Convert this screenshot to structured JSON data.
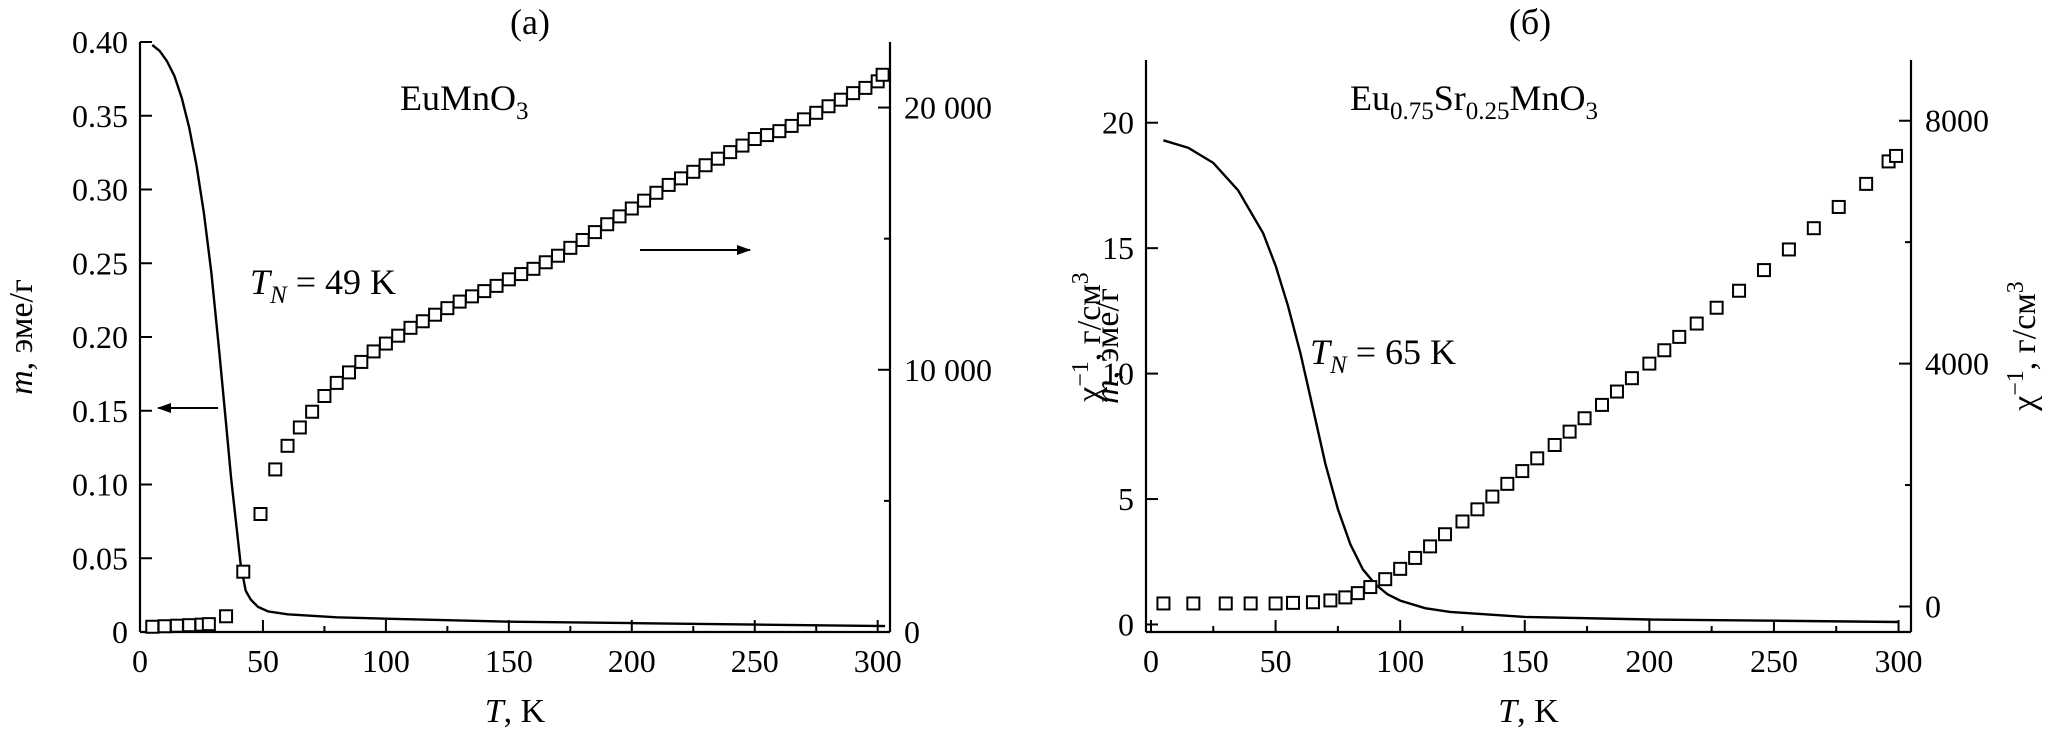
{
  "chart_data": [
    {
      "panel": "a",
      "panel_label": "(a)",
      "type": "line+scatter",
      "formula_parts": [
        {
          "text": "EuMnO",
          "sub": false
        },
        {
          "text": "3",
          "sub": true
        }
      ],
      "annotation": {
        "symbol": "T",
        "sub": "N",
        "rest": " = 49 K"
      },
      "xlabel": {
        "var": "T",
        "unit": ", K"
      },
      "ylabel_left": {
        "var": "m",
        "unit": ", эме/г"
      },
      "ylabel_right": {
        "prefix": "χ",
        "sup1": "−1",
        "mid": ", г/см",
        "sup2": "3"
      },
      "xlim": [
        0,
        305
      ],
      "ylim_left": [
        0,
        0.4
      ],
      "ylim_right": [
        0,
        22500
      ],
      "xticks": [
        0,
        50,
        100,
        150,
        200,
        250,
        300
      ],
      "xtick_labels": [
        "0",
        "50",
        "100",
        "150",
        "200",
        "250",
        "300"
      ],
      "yticks_left": [
        0,
        0.05,
        0.1,
        0.15,
        0.2,
        0.25,
        0.3,
        0.35,
        0.4
      ],
      "ytick_labels_left": [
        "0",
        "0.05",
        "0.10",
        "0.15",
        "0.20",
        "0.25",
        "0.30",
        "0.35",
        "0.40"
      ],
      "yticks_right": [
        0,
        10000,
        20000
      ],
      "ytick_labels_right": [
        "0",
        "10 000",
        "20 000"
      ],
      "series": [
        {
          "axis": "left",
          "style": "line",
          "x": [
            5,
            8,
            11,
            14,
            17,
            20,
            23,
            26,
            29,
            32,
            35,
            37,
            39,
            41,
            43,
            45,
            48,
            52,
            60,
            80,
            100,
            150,
            200,
            250,
            303
          ],
          "y": [
            0.398,
            0.394,
            0.387,
            0.377,
            0.362,
            0.342,
            0.316,
            0.284,
            0.244,
            0.194,
            0.141,
            0.105,
            0.075,
            0.045,
            0.028,
            0.022,
            0.017,
            0.014,
            0.012,
            0.01,
            0.009,
            0.007,
            0.006,
            0.005,
            0.004
          ]
        },
        {
          "axis": "right",
          "style": "open-square",
          "x": [
            5,
            10,
            15,
            20,
            25,
            28,
            35,
            42,
            49,
            55,
            60,
            65,
            70,
            75,
            80,
            85,
            90,
            95,
            100,
            105,
            110,
            115,
            120,
            125,
            130,
            135,
            140,
            145,
            150,
            155,
            160,
            165,
            170,
            175,
            180,
            185,
            190,
            195,
            200,
            205,
            210,
            215,
            220,
            225,
            230,
            235,
            240,
            245,
            250,
            255,
            260,
            265,
            270,
            275,
            280,
            285,
            290,
            295,
            300,
            302
          ],
          "y": [
            200,
            220,
            240,
            260,
            280,
            300,
            600,
            2300,
            4500,
            6200,
            7100,
            7800,
            8400,
            9000,
            9500,
            9900,
            10300,
            10700,
            11000,
            11300,
            11600,
            11850,
            12100,
            12350,
            12600,
            12800,
            13000,
            13200,
            13450,
            13650,
            13850,
            14100,
            14350,
            14650,
            14950,
            15250,
            15550,
            15850,
            16150,
            16450,
            16750,
            17050,
            17300,
            17550,
            17800,
            18050,
            18300,
            18550,
            18800,
            18950,
            19100,
            19300,
            19550,
            19800,
            20050,
            20300,
            20550,
            20750,
            21000,
            21250
          ]
        }
      ],
      "arrows": [
        {
          "direction": "left",
          "target_axis": "left"
        },
        {
          "direction": "right",
          "target_axis": "right"
        }
      ]
    },
    {
      "panel": "b",
      "panel_label": "(б)",
      "type": "line+scatter",
      "formula_parts": [
        {
          "text": "Eu",
          "sub": false
        },
        {
          "text": "0.75",
          "sub": true
        },
        {
          "text": "Sr",
          "sub": false
        },
        {
          "text": "0.25",
          "sub": true
        },
        {
          "text": "MnO",
          "sub": false
        },
        {
          "text": "3",
          "sub": true
        }
      ],
      "annotation": {
        "symbol": "T",
        "sub": "N",
        "rest": " = 65 K"
      },
      "xlabel": {
        "var": "T",
        "unit": ", K"
      },
      "ylabel_left": {
        "var": "m",
        "unit": ", эме/г"
      },
      "ylabel_right": {
        "prefix": "χ",
        "sup1": "−1",
        "mid": ", г/см",
        "sup2": "3"
      },
      "xlim": [
        -2,
        305
      ],
      "ylim_left": [
        -0.3,
        22.5
      ],
      "ylim_right": [
        -420,
        9000
      ],
      "xticks": [
        0,
        50,
        100,
        150,
        200,
        250,
        300
      ],
      "xtick_labels": [
        "0",
        "50",
        "100",
        "150",
        "200",
        "250",
        "300"
      ],
      "yticks_left": [
        0,
        5,
        10,
        15,
        20
      ],
      "ytick_labels_left": [
        "0",
        "5",
        "10",
        "15",
        "20"
      ],
      "yticks_right": [
        0,
        4000,
        8000
      ],
      "ytick_labels_right": [
        "0",
        "4000",
        "8000"
      ],
      "series": [
        {
          "axis": "left",
          "style": "line",
          "x": [
            5,
            15,
            25,
            35,
            45,
            50,
            55,
            60,
            65,
            70,
            75,
            80,
            85,
            90,
            95,
            100,
            110,
            120,
            150,
            200,
            250,
            300
          ],
          "y": [
            19.3,
            19.0,
            18.4,
            17.3,
            15.6,
            14.3,
            12.7,
            10.8,
            8.6,
            6.4,
            4.6,
            3.2,
            2.2,
            1.6,
            1.2,
            0.95,
            0.65,
            0.5,
            0.3,
            0.2,
            0.15,
            0.1
          ]
        },
        {
          "axis": "right",
          "style": "open-square",
          "x": [
            5,
            17,
            30,
            40,
            50,
            57,
            65,
            72,
            78,
            83,
            88,
            94,
            100,
            106,
            112,
            118,
            125,
            131,
            137,
            143,
            149,
            155,
            162,
            168,
            174,
            181,
            187,
            193,
            200,
            206,
            212,
            219,
            227,
            236,
            246,
            256,
            266,
            276,
            287,
            296,
            299
          ],
          "y": [
            50,
            50,
            50,
            50,
            50,
            60,
            70,
            100,
            150,
            220,
            320,
            450,
            620,
            800,
            990,
            1190,
            1400,
            1600,
            1810,
            2020,
            2230,
            2440,
            2660,
            2880,
            3100,
            3320,
            3540,
            3760,
            4000,
            4220,
            4440,
            4660,
            4920,
            5200,
            5540,
            5880,
            6230,
            6580,
            6960,
            7330,
            7420
          ]
        }
      ],
      "arrows": []
    }
  ]
}
